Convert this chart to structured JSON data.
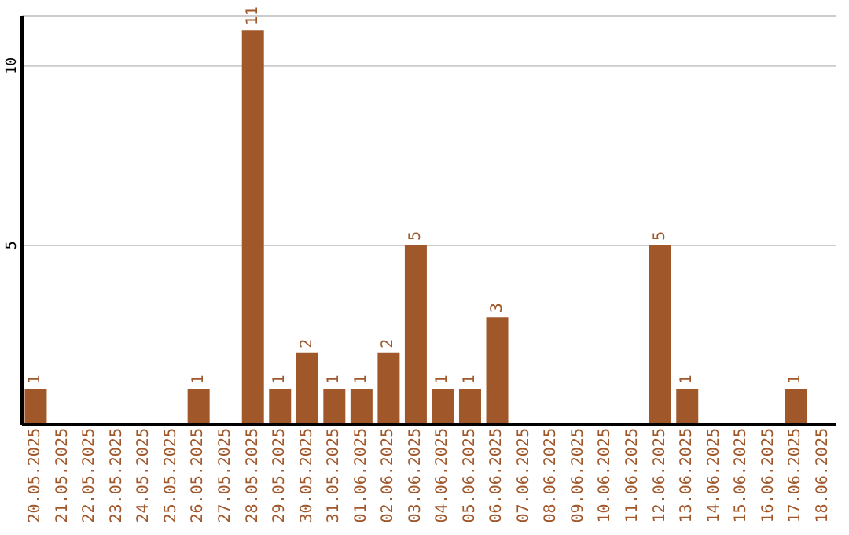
{
  "chart_data": {
    "type": "bar",
    "categories": [
      "20.05.2025",
      "21.05.2025",
      "22.05.2025",
      "23.05.2025",
      "24.05.2025",
      "25.05.2025",
      "26.05.2025",
      "27.05.2025",
      "28.05.2025",
      "29.05.2025",
      "30.05.2025",
      "31.05.2025",
      "01.06.2025",
      "02.06.2025",
      "03.06.2025",
      "04.06.2025",
      "05.06.2025",
      "06.06.2025",
      "07.06.2025",
      "08.06.2025",
      "09.06.2025",
      "10.06.2025",
      "11.06.2025",
      "12.06.2025",
      "13.06.2025",
      "14.06.2025",
      "15.06.2025",
      "16.06.2025",
      "17.06.2025",
      "18.06.2025"
    ],
    "values": [
      1,
      0,
      0,
      0,
      0,
      0,
      1,
      0,
      11,
      1,
      2,
      1,
      1,
      2,
      5,
      1,
      1,
      3,
      0,
      0,
      0,
      0,
      0,
      5,
      1,
      0,
      0,
      0,
      1,
      0
    ],
    "value_labels": [
      "1",
      null,
      null,
      null,
      null,
      null,
      "1",
      null,
      "11",
      "1",
      "2",
      "1",
      "1",
      "2",
      "5",
      "1",
      "1",
      "3",
      null,
      null,
      null,
      null,
      null,
      "5",
      "1",
      null,
      null,
      null,
      "1",
      null
    ],
    "color": "#a0572a",
    "ylim": [
      0,
      11.4
    ],
    "yticks": [
      5,
      10
    ],
    "grid": "y"
  }
}
